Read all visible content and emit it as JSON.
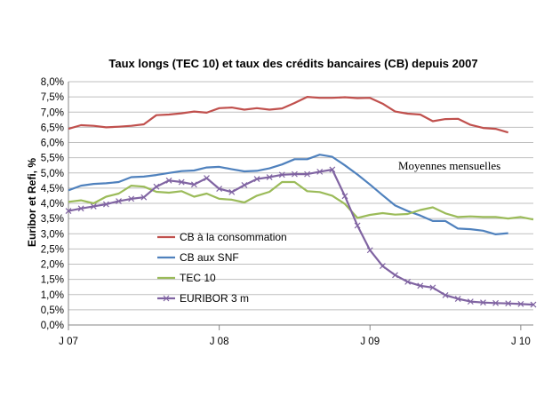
{
  "chart_data": {
    "type": "line",
    "title": "Taux longs (TEC 10) et taux des crédits bancaires (CB) depuis 2007",
    "ylabel": "Euribor et Refi, %",
    "xlabel": "",
    "annotation": "Moyennes  mensuelles",
    "ylim": [
      0,
      8
    ],
    "y_ticks": [
      "0,0%",
      "0,5%",
      "1,0%",
      "1,5%",
      "2,0%",
      "2,5%",
      "3,0%",
      "3,5%",
      "4,0%",
      "4,5%",
      "5,0%",
      "5,5%",
      "6,0%",
      "6,5%",
      "7,0%",
      "7,5%",
      "8,0%"
    ],
    "x_ticks": [
      {
        "label": "J 07",
        "month": 0
      },
      {
        "label": "J 08",
        "month": 12
      },
      {
        "label": "J 09",
        "month": 24
      },
      {
        "label": "J 10",
        "month": 36
      }
    ],
    "x_range_months": [
      0,
      37
    ],
    "grid": "horizontal",
    "legend_position": "center-left",
    "series": [
      {
        "name": "CB à la consommation",
        "color": "#c0504d",
        "marker": "none",
        "x": [
          0,
          1,
          2,
          3,
          4,
          5,
          6,
          7,
          8,
          9,
          10,
          11,
          12,
          13,
          14,
          15,
          16,
          17,
          18,
          19,
          20,
          21,
          22,
          23,
          24,
          25,
          26,
          27,
          28,
          29,
          30,
          31,
          32,
          33,
          34,
          35
        ],
        "values": [
          6.45,
          6.57,
          6.55,
          6.5,
          6.52,
          6.55,
          6.6,
          6.9,
          6.92,
          6.96,
          7.02,
          6.98,
          7.13,
          7.15,
          7.08,
          7.13,
          7.08,
          7.12,
          7.3,
          7.5,
          7.47,
          7.47,
          7.49,
          7.46,
          7.47,
          7.28,
          7.02,
          6.95,
          6.92,
          6.7,
          6.77,
          6.78,
          6.58,
          6.48,
          6.45,
          6.33
        ]
      },
      {
        "name": "CB aux  SNF",
        "color": "#4f81bd",
        "marker": "none",
        "x": [
          0,
          1,
          2,
          3,
          4,
          5,
          6,
          7,
          8,
          9,
          10,
          11,
          12,
          13,
          14,
          15,
          16,
          17,
          18,
          19,
          20,
          21,
          22,
          23,
          24,
          25,
          26,
          27,
          28,
          29,
          30,
          31,
          32,
          33,
          34,
          35
        ],
        "values": [
          4.43,
          4.58,
          4.64,
          4.66,
          4.7,
          4.86,
          4.88,
          4.93,
          5.0,
          5.06,
          5.08,
          5.18,
          5.2,
          5.12,
          5.05,
          5.07,
          5.15,
          5.28,
          5.45,
          5.45,
          5.6,
          5.53,
          5.25,
          4.95,
          4.62,
          4.27,
          3.93,
          3.75,
          3.6,
          3.42,
          3.42,
          3.17,
          3.15,
          3.1,
          2.98,
          3.02
        ]
      },
      {
        "name": "TEC 10",
        "color": "#9bbb59",
        "marker": "none",
        "x": [
          0,
          1,
          2,
          3,
          4,
          5,
          6,
          7,
          8,
          9,
          10,
          11,
          12,
          13,
          14,
          15,
          16,
          17,
          18,
          19,
          20,
          21,
          22,
          23,
          24,
          25,
          26,
          27,
          28,
          29,
          30,
          31,
          32,
          33,
          34,
          35,
          36,
          37
        ],
        "values": [
          4.05,
          4.1,
          4.0,
          4.22,
          4.32,
          4.58,
          4.55,
          4.38,
          4.35,
          4.4,
          4.22,
          4.32,
          4.15,
          4.12,
          4.03,
          4.25,
          4.38,
          4.7,
          4.7,
          4.4,
          4.37,
          4.25,
          3.98,
          3.52,
          3.62,
          3.68,
          3.63,
          3.65,
          3.78,
          3.87,
          3.67,
          3.55,
          3.57,
          3.55,
          3.55,
          3.5,
          3.55,
          3.47
        ]
      },
      {
        "name": "EURIBOR 3 m",
        "color": "#8064a2",
        "marker": "x",
        "x": [
          0,
          1,
          2,
          3,
          4,
          5,
          6,
          7,
          8,
          9,
          10,
          11,
          12,
          13,
          14,
          15,
          16,
          17,
          18,
          19,
          20,
          21,
          22,
          23,
          24,
          25,
          26,
          27,
          28,
          29,
          30,
          31,
          32,
          33,
          34,
          35,
          36,
          37
        ],
        "values": [
          3.75,
          3.83,
          3.9,
          3.97,
          4.07,
          4.15,
          4.2,
          4.55,
          4.75,
          4.7,
          4.62,
          4.83,
          4.48,
          4.37,
          4.6,
          4.8,
          4.86,
          4.94,
          4.96,
          4.96,
          5.04,
          5.11,
          4.24,
          3.27,
          2.46,
          1.94,
          1.64,
          1.42,
          1.29,
          1.23,
          0.98,
          0.86,
          0.77,
          0.74,
          0.72,
          0.71,
          0.69,
          0.67
        ]
      }
    ]
  }
}
